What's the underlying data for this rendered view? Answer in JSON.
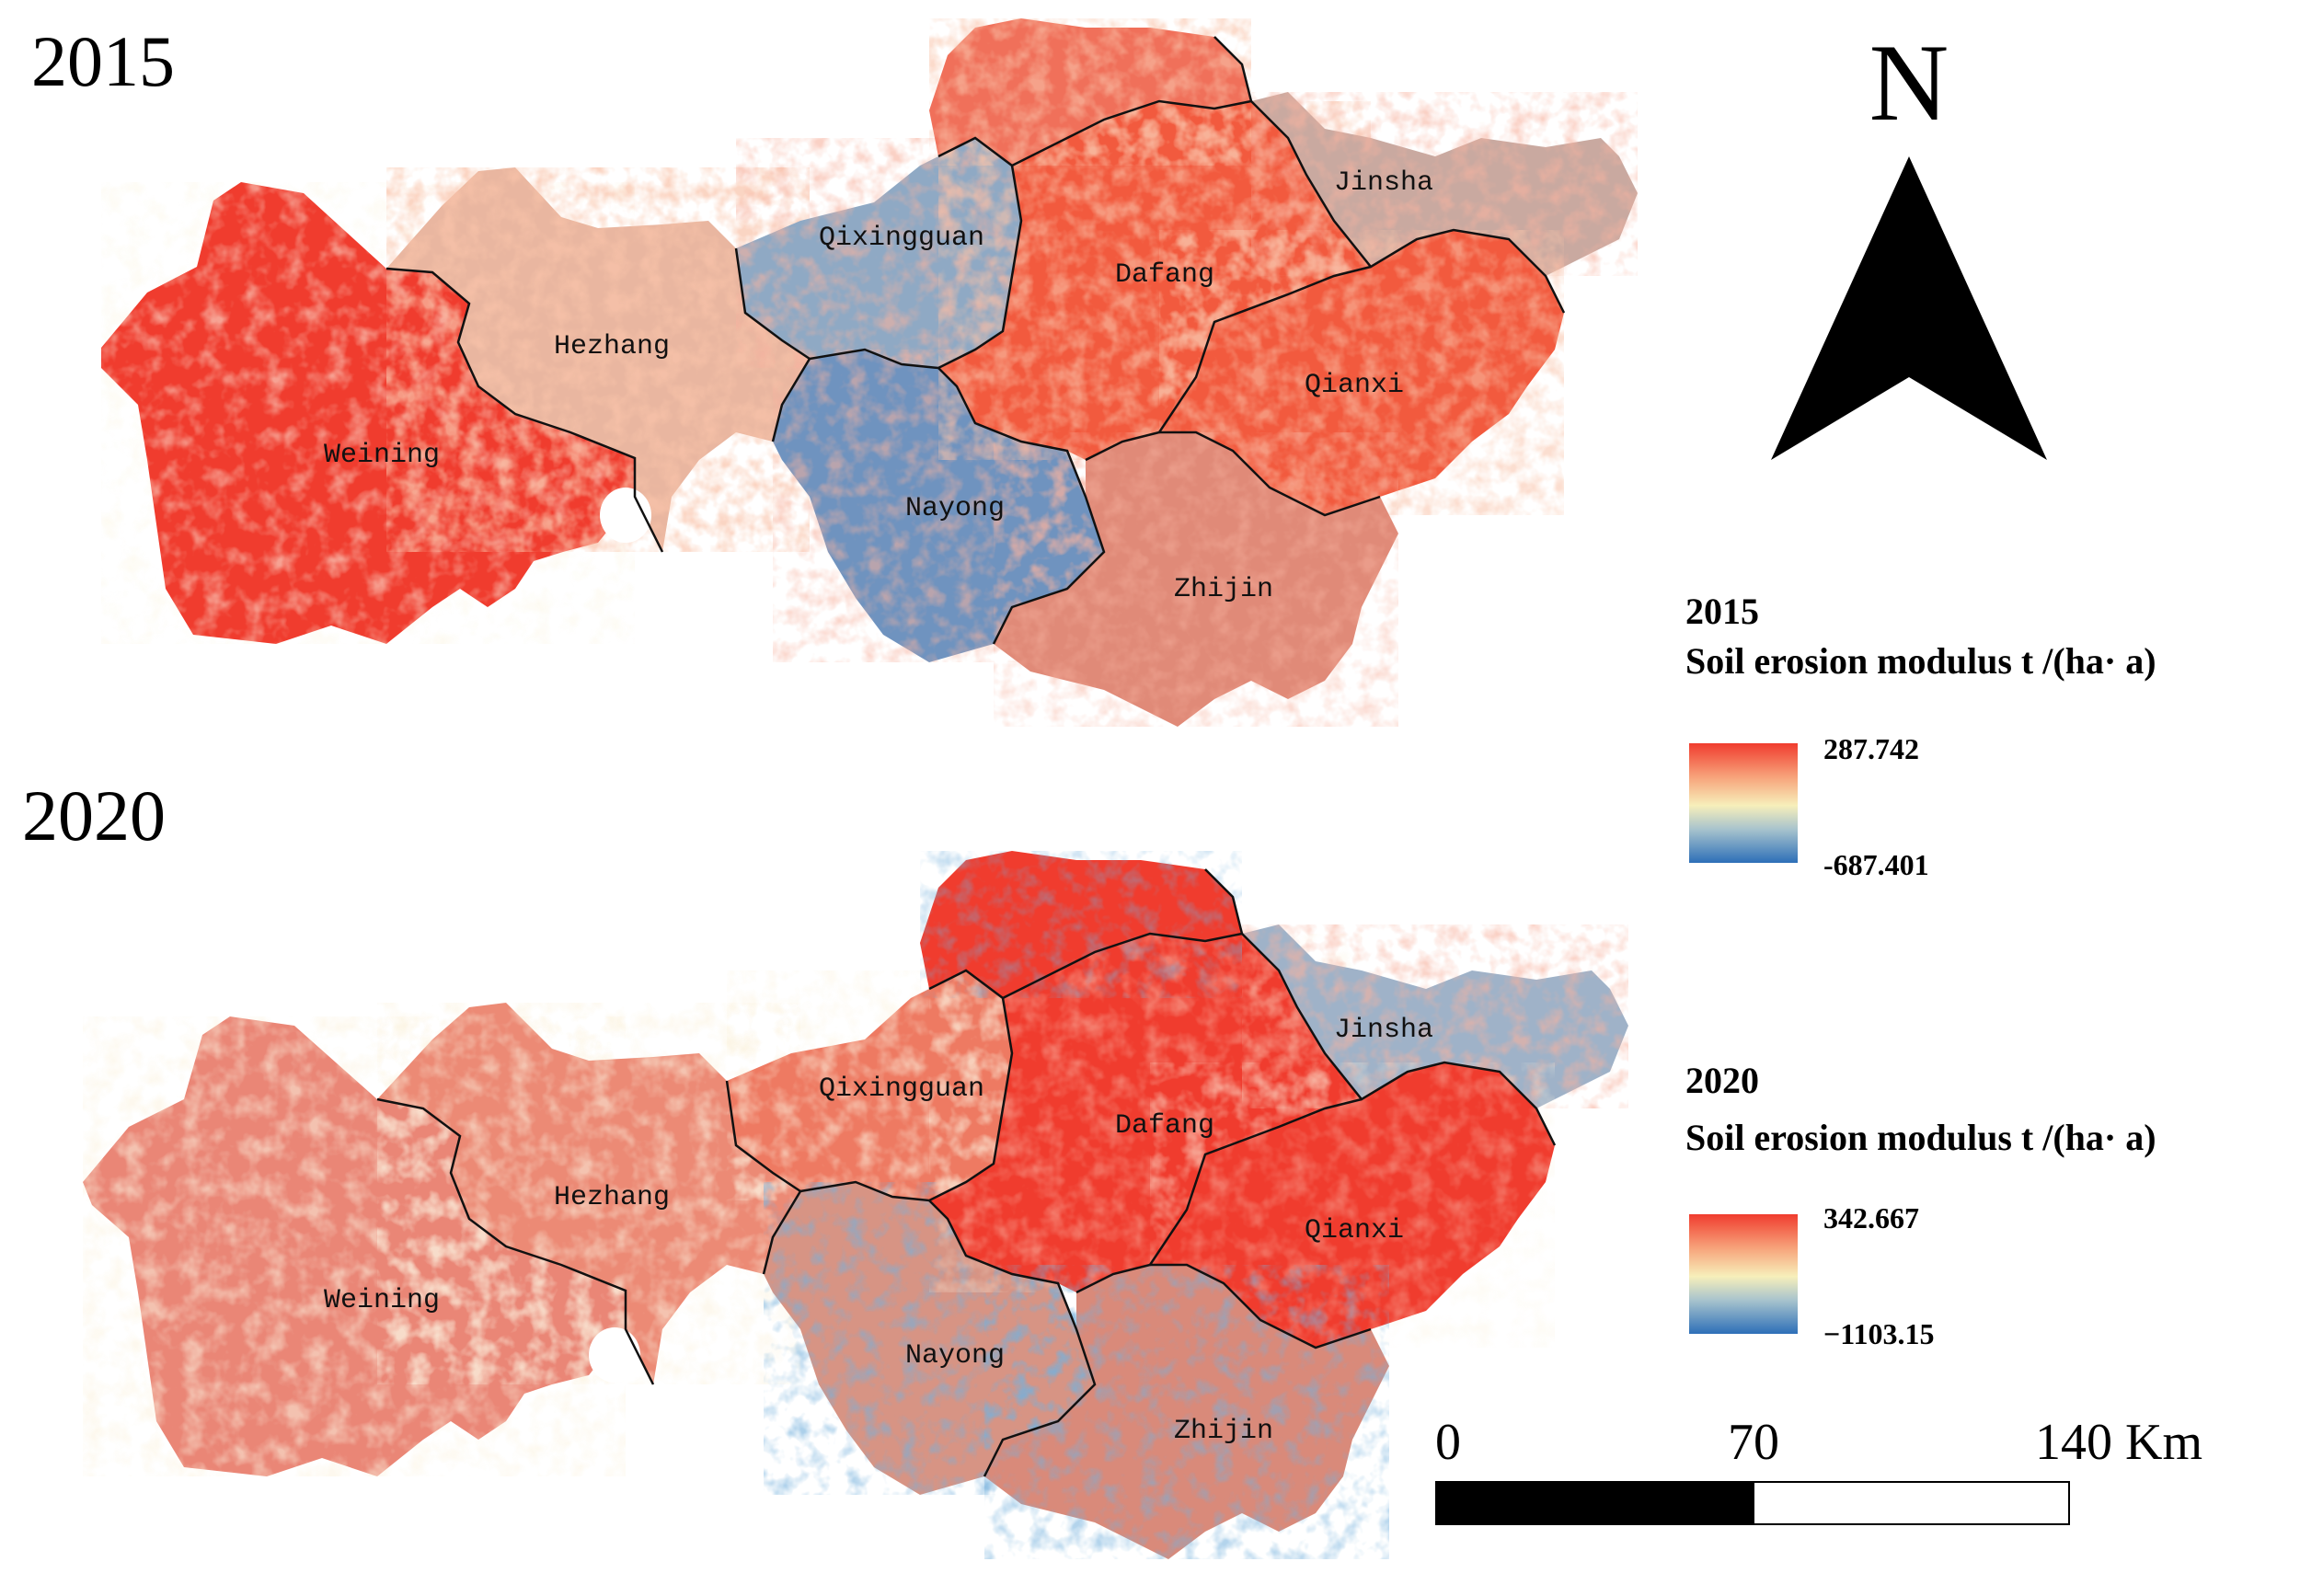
{
  "maps": [
    {
      "id": "2015",
      "year_label": "2015",
      "legend": {
        "year": "2015",
        "title": "Soil erosion modulus t /(ha· a)",
        "max": "287.742",
        "min": "-687.401"
      }
    },
    {
      "id": "2020",
      "year_label": "2020",
      "legend": {
        "year": "2020",
        "title": "Soil erosion modulus t /(ha· a)",
        "max": "342.667",
        "min": "−1103.15"
      }
    }
  ],
  "regions": [
    "Weining",
    "Hezhang",
    "Qixingguan",
    "Dafang",
    "Jinsha",
    "Qianxi",
    "Nayong",
    "Zhijin"
  ],
  "north_arrow": {
    "label": "N",
    "icon": "north-arrow-icon"
  },
  "scale_bar": {
    "ticks": [
      "0",
      "70",
      "140 Km"
    ]
  },
  "colors": {
    "high": "#f03c2e",
    "mid": "#f7efba",
    "low": "#2d6fb8",
    "boundary": "#111111"
  }
}
